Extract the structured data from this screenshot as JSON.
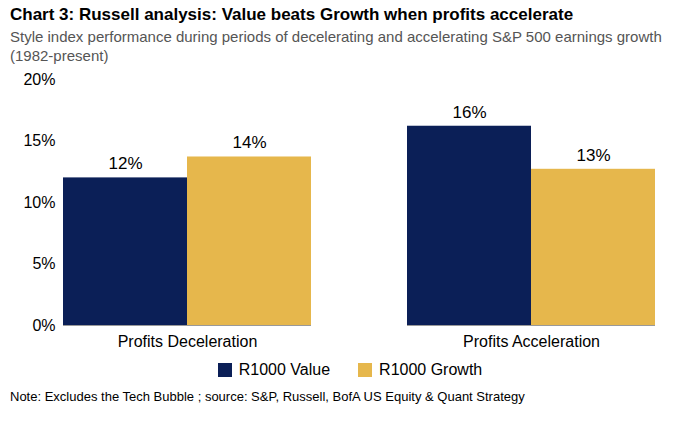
{
  "chart_data": {
    "type": "bar",
    "title": "Chart 3: Russell analysis: Value beats Growth when profits accelerate",
    "subtitle": "Style index performance during periods of decelerating and accelerating S&P 500 earnings growth (1982-present)",
    "note": "Note: Excludes the Tech Bubble ; source: S&P, Russell, BofA US Equity & Quant Strategy",
    "categories": [
      "Profits Deceleration",
      "Profits Acceleration"
    ],
    "series": [
      {
        "name": "R1000 Value",
        "color": "#0b1f57",
        "values": [
          12.0,
          16.2
        ],
        "value_labels": [
          "12%",
          "16%"
        ]
      },
      {
        "name": "R1000 Growth",
        "color": "#e6b74c",
        "values": [
          13.7,
          12.7
        ],
        "value_labels": [
          "14%",
          "13%"
        ]
      }
    ],
    "ylim": [
      0,
      20
    ],
    "yticks": [
      {
        "value": 0,
        "label": "0%"
      },
      {
        "value": 5,
        "label": "5%"
      },
      {
        "value": 10,
        "label": "10%"
      },
      {
        "value": 15,
        "label": "15%"
      },
      {
        "value": 20,
        "label": "20%"
      }
    ],
    "grid": false,
    "legend": "bottom",
    "data_labels": true
  }
}
